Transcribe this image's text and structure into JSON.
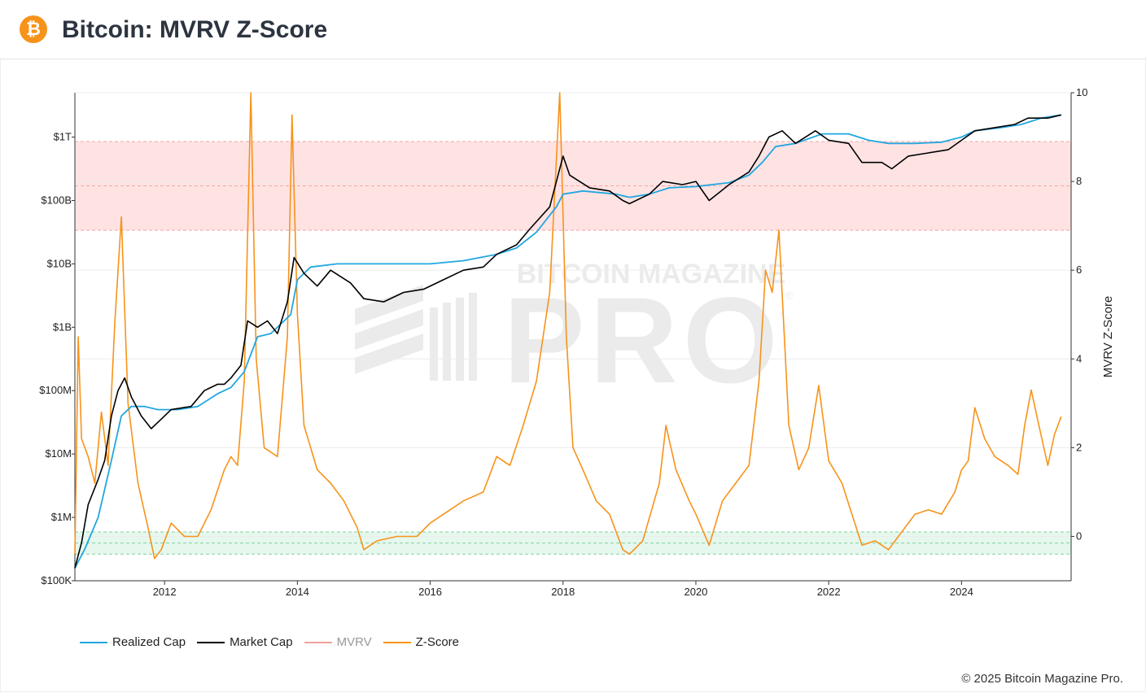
{
  "header": {
    "title": "Bitcoin: MVRV Z-Score",
    "logo_glyph": "₿",
    "logo_icon": "bitcoin-logo-icon"
  },
  "watermark": {
    "line1": "BITCOIN MAGAZINE",
    "line2": "PRO",
    "reg": "®"
  },
  "copyright": "© 2025 Bitcoin Magazine Pro.",
  "colors": {
    "realized_cap": "#22a7e0",
    "market_cap": "#000000",
    "mvrv": "#f2a196",
    "z_score": "#f7931a",
    "red_band": "#ffe3e3",
    "green_band": "#e6f7ee"
  },
  "chart_data": {
    "type": "line",
    "title": "Bitcoin: MVRV Z-Score",
    "x_axis": {
      "ticks": [
        "2012",
        "2014",
        "2016",
        "2018",
        "2020",
        "2022",
        "2024"
      ],
      "range": [
        2010.65,
        2025.65
      ]
    },
    "y_left": {
      "scale": "log",
      "ticks": [
        "$100K",
        "$1M",
        "$10M",
        "$100M",
        "$1B",
        "$10B",
        "$100B",
        "$1T"
      ],
      "range_log10": [
        5,
        12.7
      ]
    },
    "y_right": {
      "label": "MVRV Z-Score",
      "ticks": [
        "0",
        "2",
        "4",
        "6",
        "8",
        "10"
      ],
      "range": [
        -1,
        10
      ]
    },
    "bands": [
      {
        "name": "red-zone",
        "z_range": [
          6.9,
          8.9
        ]
      },
      {
        "name": "green-zone",
        "z_range": [
          -0.4,
          0.1
        ]
      }
    ],
    "legend": [
      "Realized Cap",
      "Market Cap",
      "MVRV",
      "Z-Score"
    ],
    "series": [
      {
        "name": "Realized Cap",
        "axis": "left_log10",
        "points": [
          [
            2010.65,
            5.2
          ],
          [
            2010.8,
            5.5
          ],
          [
            2011.0,
            6.0
          ],
          [
            2011.2,
            6.9
          ],
          [
            2011.35,
            7.6
          ],
          [
            2011.5,
            7.75
          ],
          [
            2011.7,
            7.75
          ],
          [
            2011.9,
            7.7
          ],
          [
            2012.2,
            7.7
          ],
          [
            2012.5,
            7.75
          ],
          [
            2012.8,
            7.95
          ],
          [
            2013.0,
            8.05
          ],
          [
            2013.2,
            8.3
          ],
          [
            2013.4,
            8.85
          ],
          [
            2013.6,
            8.9
          ],
          [
            2013.9,
            9.2
          ],
          [
            2014.0,
            9.75
          ],
          [
            2014.2,
            9.95
          ],
          [
            2014.6,
            10.0
          ],
          [
            2015.0,
            10.0
          ],
          [
            2015.5,
            10.0
          ],
          [
            2016.0,
            10.0
          ],
          [
            2016.5,
            10.05
          ],
          [
            2017.0,
            10.15
          ],
          [
            2017.3,
            10.25
          ],
          [
            2017.6,
            10.5
          ],
          [
            2017.9,
            10.9
          ],
          [
            2018.0,
            11.1
          ],
          [
            2018.3,
            11.15
          ],
          [
            2018.8,
            11.1
          ],
          [
            2019.0,
            11.05
          ],
          [
            2019.3,
            11.1
          ],
          [
            2019.6,
            11.2
          ],
          [
            2020.0,
            11.22
          ],
          [
            2020.5,
            11.28
          ],
          [
            2020.8,
            11.4
          ],
          [
            2021.0,
            11.6
          ],
          [
            2021.2,
            11.85
          ],
          [
            2021.5,
            11.9
          ],
          [
            2021.9,
            12.05
          ],
          [
            2022.3,
            12.05
          ],
          [
            2022.6,
            11.95
          ],
          [
            2022.9,
            11.9
          ],
          [
            2023.3,
            11.9
          ],
          [
            2023.7,
            11.92
          ],
          [
            2024.0,
            12.0
          ],
          [
            2024.2,
            12.1
          ],
          [
            2024.6,
            12.15
          ],
          [
            2024.9,
            12.2
          ],
          [
            2025.2,
            12.3
          ],
          [
            2025.5,
            12.35
          ]
        ]
      },
      {
        "name": "Market Cap",
        "axis": "left_log10",
        "points": [
          [
            2010.65,
            5.2
          ],
          [
            2010.75,
            5.6
          ],
          [
            2010.85,
            6.2
          ],
          [
            2011.0,
            6.6
          ],
          [
            2011.1,
            6.9
          ],
          [
            2011.2,
            7.6
          ],
          [
            2011.3,
            8.0
          ],
          [
            2011.4,
            8.2
          ],
          [
            2011.5,
            7.9
          ],
          [
            2011.65,
            7.6
          ],
          [
            2011.8,
            7.4
          ],
          [
            2011.95,
            7.55
          ],
          [
            2012.1,
            7.7
          ],
          [
            2012.4,
            7.75
          ],
          [
            2012.6,
            8.0
          ],
          [
            2012.8,
            8.1
          ],
          [
            2012.9,
            8.1
          ],
          [
            2013.0,
            8.2
          ],
          [
            2013.15,
            8.4
          ],
          [
            2013.25,
            9.1
          ],
          [
            2013.4,
            9.0
          ],
          [
            2013.55,
            9.1
          ],
          [
            2013.7,
            8.9
          ],
          [
            2013.85,
            9.4
          ],
          [
            2013.95,
            10.1
          ],
          [
            2014.1,
            9.85
          ],
          [
            2014.3,
            9.65
          ],
          [
            2014.5,
            9.9
          ],
          [
            2014.8,
            9.7
          ],
          [
            2015.0,
            9.45
          ],
          [
            2015.3,
            9.4
          ],
          [
            2015.6,
            9.55
          ],
          [
            2015.9,
            9.6
          ],
          [
            2016.2,
            9.75
          ],
          [
            2016.5,
            9.9
          ],
          [
            2016.8,
            9.95
          ],
          [
            2017.0,
            10.15
          ],
          [
            2017.3,
            10.3
          ],
          [
            2017.5,
            10.55
          ],
          [
            2017.8,
            10.9
          ],
          [
            2017.95,
            11.5
          ],
          [
            2018.0,
            11.7
          ],
          [
            2018.1,
            11.4
          ],
          [
            2018.4,
            11.2
          ],
          [
            2018.7,
            11.15
          ],
          [
            2018.9,
            11.0
          ],
          [
            2019.0,
            10.95
          ],
          [
            2019.3,
            11.1
          ],
          [
            2019.5,
            11.3
          ],
          [
            2019.8,
            11.25
          ],
          [
            2020.0,
            11.3
          ],
          [
            2020.2,
            11.0
          ],
          [
            2020.5,
            11.25
          ],
          [
            2020.8,
            11.45
          ],
          [
            2020.95,
            11.7
          ],
          [
            2021.1,
            12.0
          ],
          [
            2021.3,
            12.1
          ],
          [
            2021.5,
            11.9
          ],
          [
            2021.8,
            12.1
          ],
          [
            2022.0,
            11.95
          ],
          [
            2022.3,
            11.9
          ],
          [
            2022.5,
            11.6
          ],
          [
            2022.8,
            11.6
          ],
          [
            2022.95,
            11.5
          ],
          [
            2023.2,
            11.7
          ],
          [
            2023.5,
            11.75
          ],
          [
            2023.8,
            11.8
          ],
          [
            2024.0,
            11.95
          ],
          [
            2024.2,
            12.1
          ],
          [
            2024.5,
            12.15
          ],
          [
            2024.8,
            12.2
          ],
          [
            2025.0,
            12.3
          ],
          [
            2025.3,
            12.3
          ],
          [
            2025.5,
            12.35
          ]
        ]
      },
      {
        "name": "Z-Score",
        "axis": "right",
        "points": [
          [
            2010.65,
            -0.4
          ],
          [
            2010.7,
            4.5
          ],
          [
            2010.75,
            2.2
          ],
          [
            2010.85,
            1.8
          ],
          [
            2010.95,
            1.2
          ],
          [
            2011.05,
            2.8
          ],
          [
            2011.15,
            1.6
          ],
          [
            2011.25,
            4.8
          ],
          [
            2011.35,
            7.2
          ],
          [
            2011.45,
            3.0
          ],
          [
            2011.6,
            1.2
          ],
          [
            2011.75,
            0.2
          ],
          [
            2011.85,
            -0.5
          ],
          [
            2011.95,
            -0.3
          ],
          [
            2012.1,
            0.3
          ],
          [
            2012.3,
            0.0
          ],
          [
            2012.5,
            0.0
          ],
          [
            2012.7,
            0.6
          ],
          [
            2012.9,
            1.5
          ],
          [
            2013.0,
            1.8
          ],
          [
            2013.1,
            1.6
          ],
          [
            2013.2,
            3.5
          ],
          [
            2013.3,
            10.0
          ],
          [
            2013.38,
            4.0
          ],
          [
            2013.5,
            2.0
          ],
          [
            2013.7,
            1.8
          ],
          [
            2013.85,
            4.5
          ],
          [
            2013.92,
            9.5
          ],
          [
            2014.0,
            5.0
          ],
          [
            2014.1,
            2.5
          ],
          [
            2014.3,
            1.5
          ],
          [
            2014.5,
            1.2
          ],
          [
            2014.7,
            0.8
          ],
          [
            2014.9,
            0.2
          ],
          [
            2015.0,
            -0.3
          ],
          [
            2015.2,
            -0.1
          ],
          [
            2015.5,
            0.0
          ],
          [
            2015.8,
            0.0
          ],
          [
            2016.0,
            0.3
          ],
          [
            2016.2,
            0.5
          ],
          [
            2016.5,
            0.8
          ],
          [
            2016.8,
            1.0
          ],
          [
            2017.0,
            1.8
          ],
          [
            2017.2,
            1.6
          ],
          [
            2017.4,
            2.5
          ],
          [
            2017.6,
            3.5
          ],
          [
            2017.8,
            5.5
          ],
          [
            2017.95,
            10.0
          ],
          [
            2018.05,
            4.5
          ],
          [
            2018.15,
            2.0
          ],
          [
            2018.3,
            1.5
          ],
          [
            2018.5,
            0.8
          ],
          [
            2018.7,
            0.5
          ],
          [
            2018.9,
            -0.3
          ],
          [
            2019.0,
            -0.4
          ],
          [
            2019.2,
            -0.1
          ],
          [
            2019.45,
            1.2
          ],
          [
            2019.55,
            2.5
          ],
          [
            2019.7,
            1.5
          ],
          [
            2019.9,
            0.8
          ],
          [
            2020.0,
            0.5
          ],
          [
            2020.2,
            -0.2
          ],
          [
            2020.4,
            0.8
          ],
          [
            2020.6,
            1.2
          ],
          [
            2020.8,
            1.6
          ],
          [
            2020.95,
            3.5
          ],
          [
            2021.05,
            6.0
          ],
          [
            2021.15,
            5.5
          ],
          [
            2021.25,
            6.9
          ],
          [
            2021.4,
            2.5
          ],
          [
            2021.55,
            1.5
          ],
          [
            2021.7,
            2.0
          ],
          [
            2021.85,
            3.4
          ],
          [
            2022.0,
            1.7
          ],
          [
            2022.2,
            1.2
          ],
          [
            2022.35,
            0.5
          ],
          [
            2022.5,
            -0.2
          ],
          [
            2022.7,
            -0.1
          ],
          [
            2022.9,
            -0.3
          ],
          [
            2023.1,
            0.1
          ],
          [
            2023.3,
            0.5
          ],
          [
            2023.5,
            0.6
          ],
          [
            2023.7,
            0.5
          ],
          [
            2023.9,
            1.0
          ],
          [
            2024.0,
            1.5
          ],
          [
            2024.1,
            1.7
          ],
          [
            2024.2,
            2.9
          ],
          [
            2024.35,
            2.2
          ],
          [
            2024.5,
            1.8
          ],
          [
            2024.7,
            1.6
          ],
          [
            2024.85,
            1.4
          ],
          [
            2024.95,
            2.5
          ],
          [
            2025.05,
            3.3
          ],
          [
            2025.15,
            2.6
          ],
          [
            2025.3,
            1.6
          ],
          [
            2025.4,
            2.3
          ],
          [
            2025.5,
            2.7
          ]
        ]
      }
    ]
  }
}
